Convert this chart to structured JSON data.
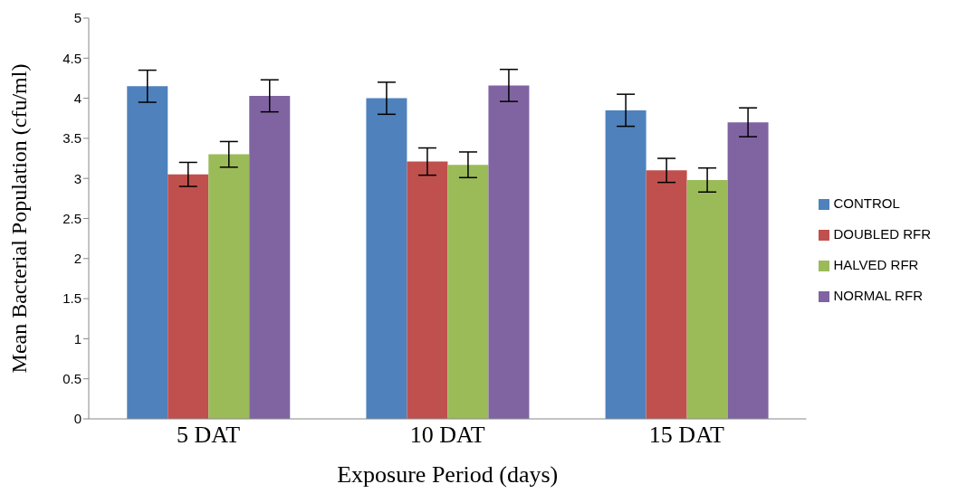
{
  "chart_data": {
    "type": "bar",
    "xlabel": "Exposure Period (days)",
    "ylabel": "Mean Bacterial Population (cfu/ml)",
    "categories": [
      "5 DAT",
      "10 DAT",
      "15 DAT"
    ],
    "series": [
      {
        "name": "CONTROL",
        "color": "#4f81bd",
        "values": [
          4.15,
          4.0,
          3.85
        ],
        "errors": [
          0.2,
          0.2,
          0.2
        ]
      },
      {
        "name": "DOUBLED RFR",
        "color": "#c0504d",
        "values": [
          3.05,
          3.21,
          3.1
        ],
        "errors": [
          0.15,
          0.17,
          0.15
        ]
      },
      {
        "name": "HALVED RFR",
        "color": "#9bbb59",
        "values": [
          3.3,
          3.17,
          2.98
        ],
        "errors": [
          0.16,
          0.16,
          0.15
        ]
      },
      {
        "name": "NORMAL RFR",
        "color": "#8064a2",
        "values": [
          4.03,
          4.16,
          3.7
        ],
        "errors": [
          0.2,
          0.2,
          0.18
        ]
      }
    ],
    "ylim": [
      0,
      5
    ],
    "yticks": [
      0,
      0.5,
      1,
      1.5,
      2,
      2.5,
      3,
      3.5,
      4,
      4.5,
      5
    ],
    "grid": false,
    "legend": "right"
  }
}
